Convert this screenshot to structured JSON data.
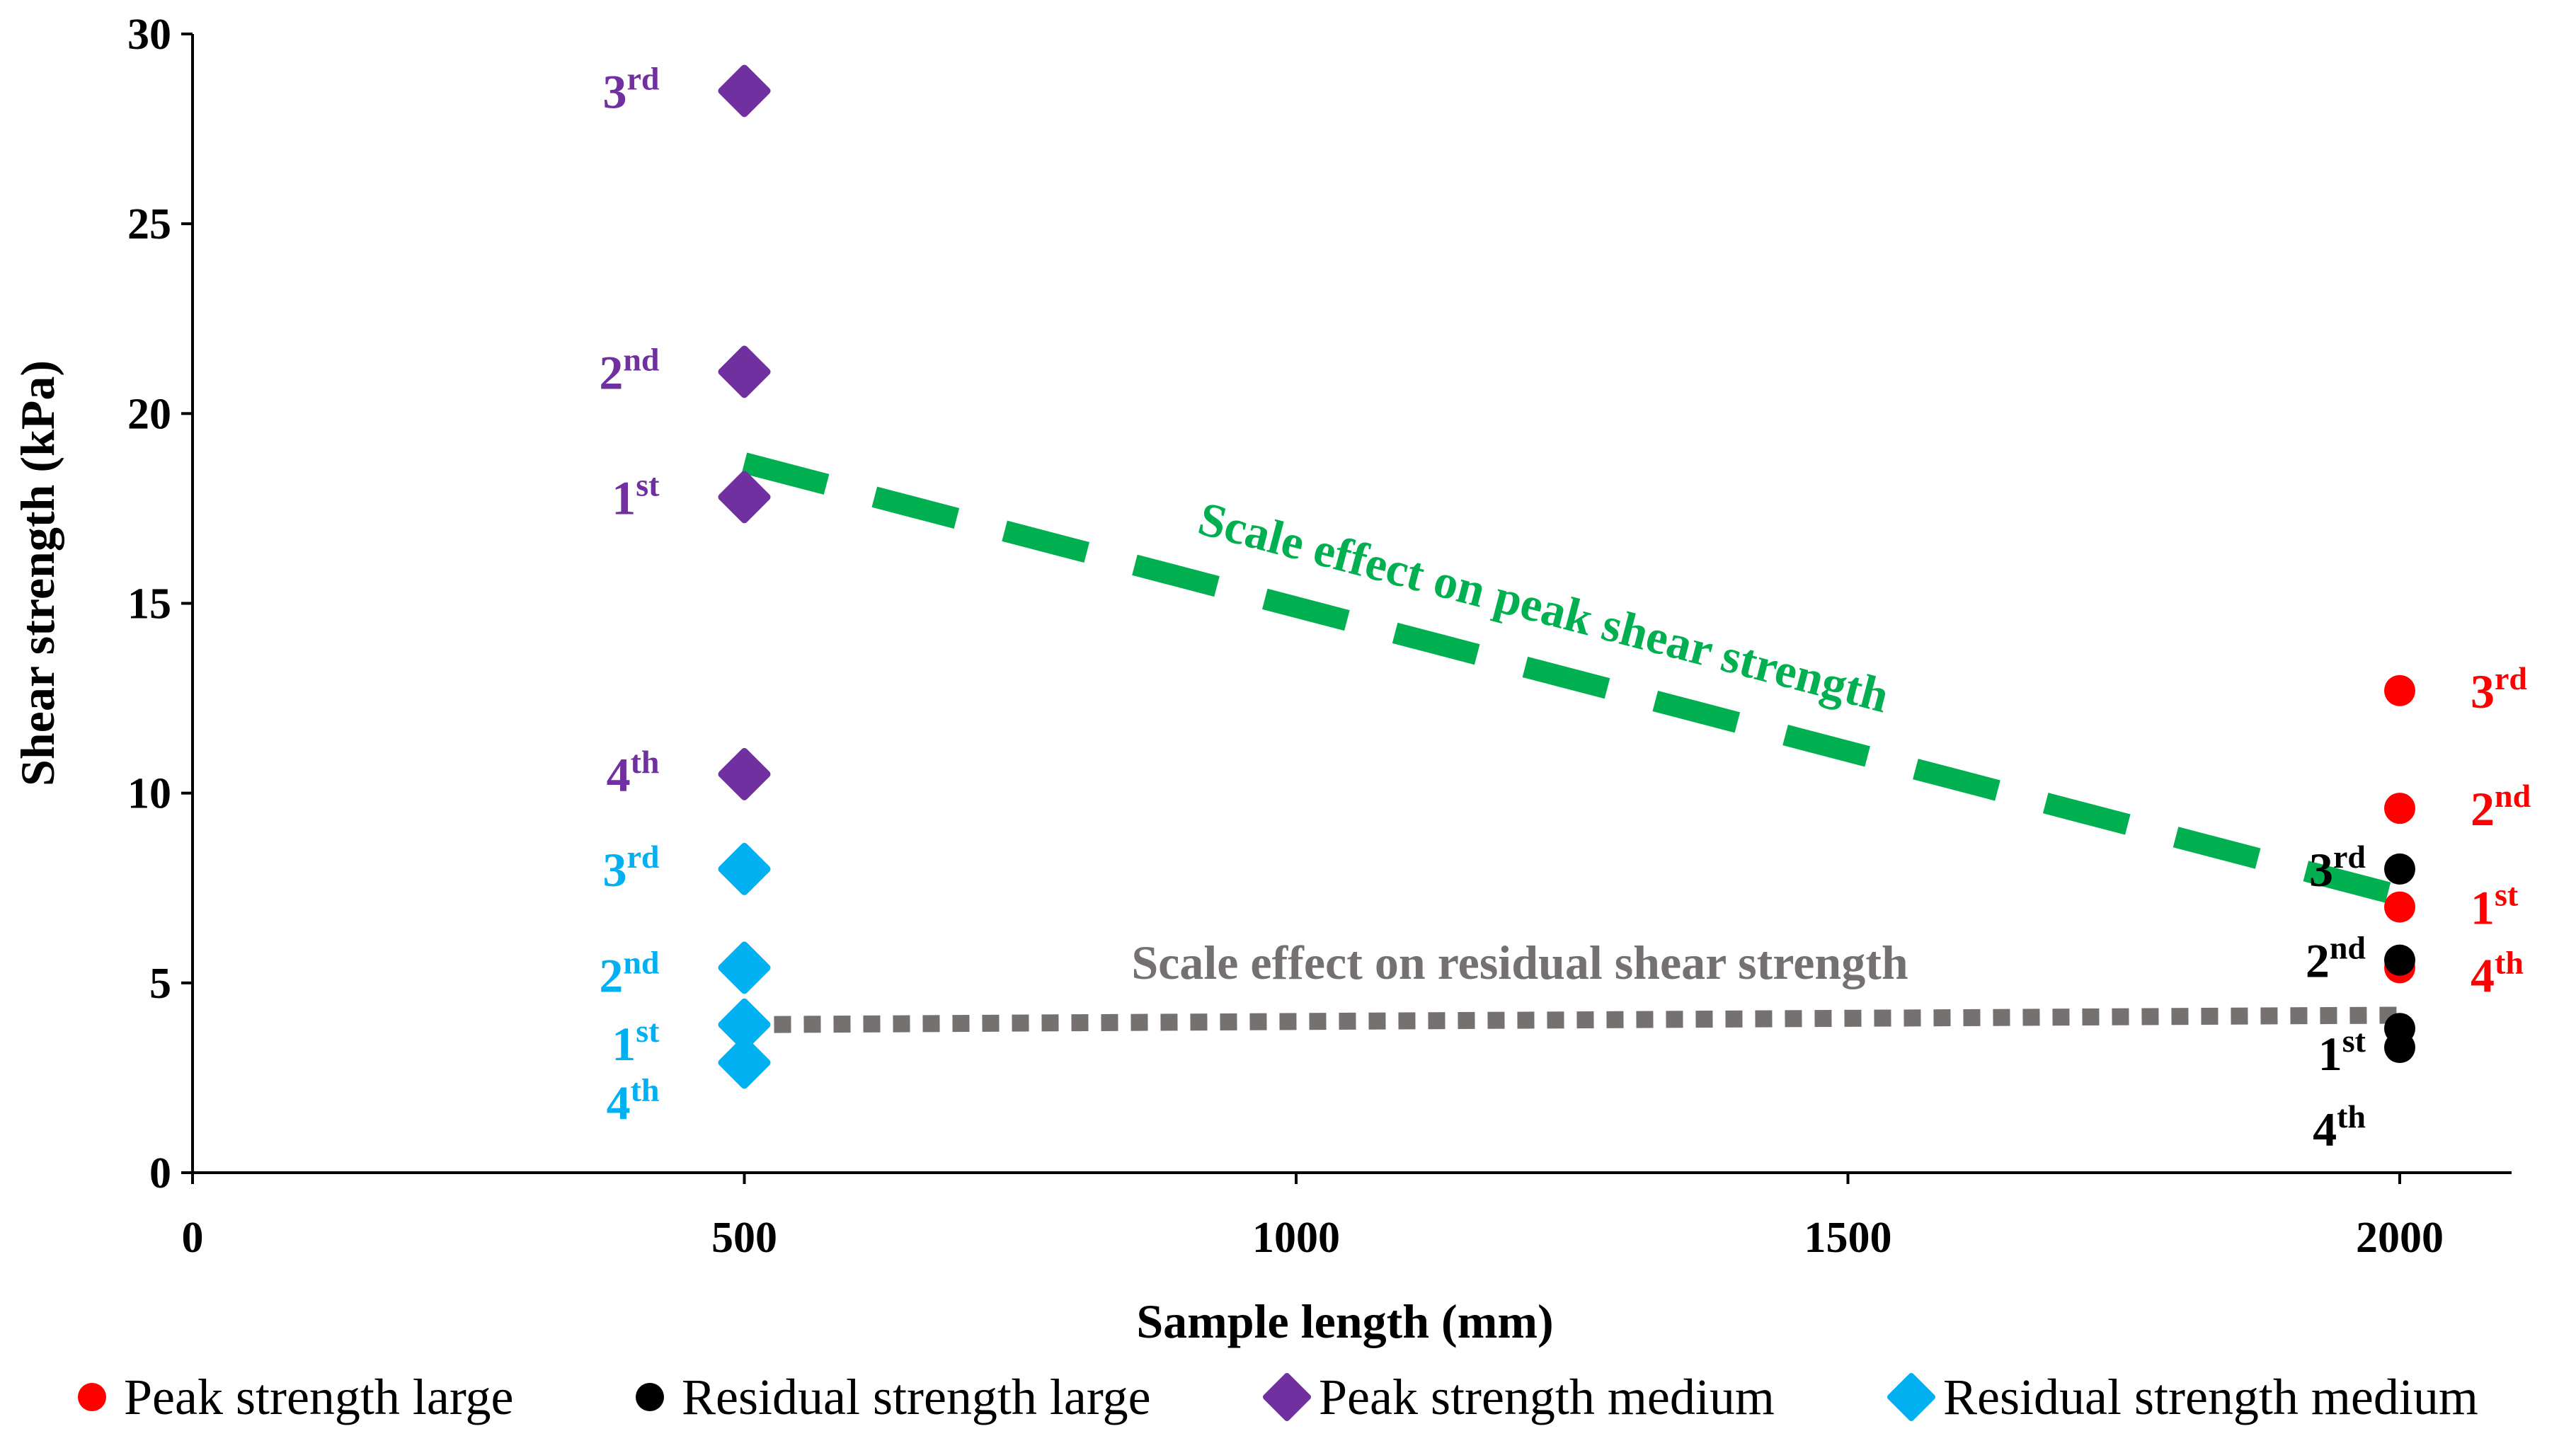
{
  "chart_data": {
    "type": "scatter",
    "xlabel": "Sample length (mm)",
    "ylabel": "Shear strength (kPa)",
    "xlim": [
      0,
      2100
    ],
    "ylim": [
      0,
      30
    ],
    "x_ticks": [
      "0",
      "500",
      "1000",
      "1500",
      "2000"
    ],
    "y_ticks": [
      "0",
      "5",
      "10",
      "15",
      "20",
      "25",
      "30"
    ],
    "grid": false,
    "legend_position": "bottom",
    "series": [
      {
        "name": "Peak strength large",
        "marker": "circle",
        "color": "#ff0000",
        "points": [
          {
            "x": 2000,
            "y": 7.0,
            "label": "1",
            "sup": "st"
          },
          {
            "x": 2000,
            "y": 9.6,
            "label": "2",
            "sup": "nd"
          },
          {
            "x": 2000,
            "y": 12.7,
            "label": "3",
            "sup": "rd"
          },
          {
            "x": 2000,
            "y": 5.4,
            "label": "4",
            "sup": "th"
          }
        ]
      },
      {
        "name": "Residual strength large",
        "marker": "circle",
        "color": "#000000",
        "points": [
          {
            "x": 2000,
            "y": 3.8,
            "label": "1",
            "sup": "st"
          },
          {
            "x": 2000,
            "y": 5.6,
            "label": "2",
            "sup": "nd"
          },
          {
            "x": 2000,
            "y": 8.0,
            "label": "3",
            "sup": "rd"
          },
          {
            "x": 2000,
            "y": 3.3,
            "label": "4",
            "sup": "th"
          }
        ]
      },
      {
        "name": "Peak strength medium",
        "marker": "diamond",
        "color": "#7030a0",
        "points": [
          {
            "x": 500,
            "y": 17.8,
            "label": "1",
            "sup": "st"
          },
          {
            "x": 500,
            "y": 21.1,
            "label": "2",
            "sup": "nd"
          },
          {
            "x": 500,
            "y": 28.5,
            "label": "3",
            "sup": "rd"
          },
          {
            "x": 500,
            "y": 10.5,
            "label": "4",
            "sup": "th"
          }
        ]
      },
      {
        "name": "Residual strength medium",
        "marker": "diamond",
        "color": "#00b0f0",
        "points": [
          {
            "x": 500,
            "y": 3.9,
            "label": "1",
            "sup": "st"
          },
          {
            "x": 500,
            "y": 5.4,
            "label": "2",
            "sup": "nd"
          },
          {
            "x": 500,
            "y": 8.0,
            "label": "3",
            "sup": "rd"
          },
          {
            "x": 500,
            "y": 2.9,
            "label": "4",
            "sup": "th"
          }
        ]
      }
    ],
    "trend_lines": [
      {
        "label": "Scale effect on peak shear strength",
        "style": "dashed",
        "color": "#00b050",
        "from": [
          500,
          18.7
        ],
        "to": [
          2000,
          7.3
        ]
      },
      {
        "label": "Scale effect on residual shear strength",
        "style": "dotted",
        "color": "#767171",
        "from": [
          500,
          3.9
        ],
        "to": [
          2000,
          4.15
        ]
      }
    ]
  }
}
